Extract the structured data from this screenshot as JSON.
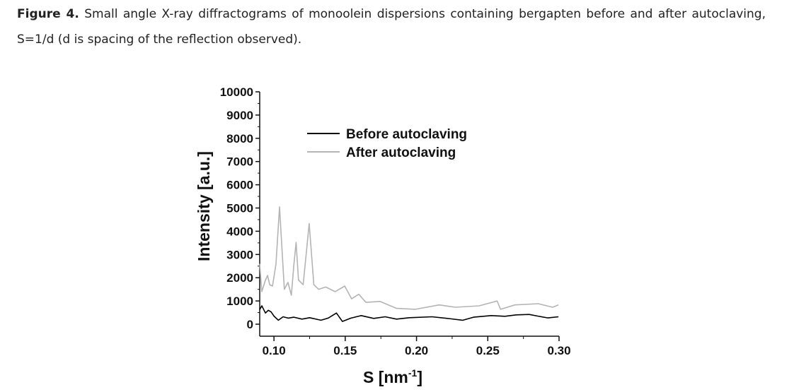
{
  "caption": {
    "label": "Figure 4.",
    "text": "Small angle X-ray diffractograms of monoolein dispersions containing bergapten before and after autoclaving, S=1/d (d is spacing of the reflection observed)."
  },
  "chart_data": {
    "type": "line",
    "title": "",
    "xlabel": "S [nm",
    "xlabel_sup": "-1",
    "xlabel_end": "]",
    "ylabel": "Intensity [a.u.]",
    "xlim": [
      0.09,
      0.3
    ],
    "ylim": [
      -500,
      10000
    ],
    "xticks": [
      0.1,
      0.15,
      0.2,
      0.25,
      0.3
    ],
    "xtick_labels": [
      "0.10",
      "0.15",
      "0.20",
      "0.25",
      "0.30"
    ],
    "yticks": [
      0,
      1000,
      2000,
      3000,
      4000,
      5000,
      6000,
      7000,
      8000,
      9000,
      10000
    ],
    "ytick_labels": [
      "0",
      "1000",
      "2000",
      "3000",
      "4000",
      "5000",
      "6000",
      "7000",
      "8000",
      "9000",
      "10000"
    ],
    "grid": false,
    "legend_position": "top-center",
    "series": [
      {
        "name": "Before autoclaving",
        "color": "#000000",
        "x": [
          0.09,
          0.0915,
          0.094,
          0.096,
          0.098,
          0.1,
          0.1031,
          0.1064,
          0.11,
          0.114,
          0.1197,
          0.125,
          0.133,
          0.138,
          0.1438,
          0.148,
          0.154,
          0.1612,
          0.17,
          0.178,
          0.186,
          0.195,
          0.2109,
          0.22,
          0.2325,
          0.24,
          0.2524,
          0.262,
          0.27,
          0.279,
          0.285,
          0.2922,
          0.2996
        ],
        "y": [
          630,
          790,
          480,
          600,
          530,
          350,
          170,
          320,
          260,
          300,
          220,
          280,
          170,
          260,
          480,
          120,
          260,
          370,
          250,
          320,
          220,
          280,
          320,
          260,
          170,
          300,
          370,
          340,
          400,
          420,
          350,
          270,
          320
        ]
      },
      {
        "name": "After autoclaving",
        "color": "#b4b4b4",
        "x": [
          0.09,
          0.0915,
          0.094,
          0.0955,
          0.097,
          0.099,
          0.1014,
          0.1039,
          0.1073,
          0.1098,
          0.1122,
          0.1139,
          0.1155,
          0.1172,
          0.1205,
          0.1247,
          0.128,
          0.1313,
          0.1363,
          0.1429,
          0.1496,
          0.1545,
          0.1595,
          0.1645,
          0.1744,
          0.186,
          0.1993,
          0.2159,
          0.2273,
          0.244,
          0.2565,
          0.259,
          0.269,
          0.2855,
          0.2955,
          0.2996
        ],
        "y": [
          2600,
          1400,
          1900,
          2100,
          1700,
          1640,
          2600,
          5050,
          1500,
          1800,
          1250,
          2500,
          3520,
          1900,
          1700,
          4330,
          1700,
          1500,
          1600,
          1400,
          1640,
          1090,
          1290,
          940,
          980,
          680,
          640,
          830,
          730,
          790,
          1000,
          640,
          830,
          880,
          730,
          830
        ]
      }
    ]
  }
}
